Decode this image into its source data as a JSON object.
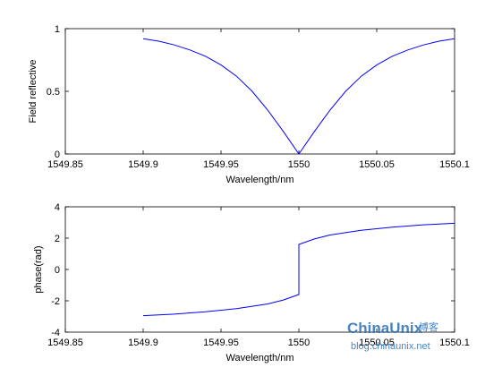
{
  "chart_data": [
    {
      "type": "line",
      "title": "",
      "xlabel": "Wavelength/nm",
      "ylabel": "Field reflective",
      "xlim": [
        1549.85,
        1550.1
      ],
      "ylim": [
        0,
        1
      ],
      "xticks": [
        1549.85,
        1549.9,
        1549.95,
        1550,
        1550.05,
        1550.1
      ],
      "xtick_labels": [
        "1549.85",
        "1549.9",
        "1549.95",
        "1550",
        "1550.05",
        "1550.1"
      ],
      "yticks": [
        0,
        0.5,
        1
      ],
      "ytick_labels": [
        "0",
        "0.5",
        "1"
      ],
      "grid": false,
      "line_color": "#0000ff",
      "series": [
        {
          "x": [
            1549.9,
            1549.91,
            1549.92,
            1549.93,
            1549.94,
            1549.95,
            1549.96,
            1549.97,
            1549.98,
            1549.99,
            1550.0,
            1550.01,
            1550.02,
            1550.03,
            1550.04,
            1550.05,
            1550.06,
            1550.07,
            1550.08,
            1550.09,
            1550.1
          ],
          "y": [
            0.92,
            0.9,
            0.87,
            0.83,
            0.78,
            0.71,
            0.62,
            0.5,
            0.35,
            0.18,
            0.0,
            0.18,
            0.35,
            0.5,
            0.62,
            0.71,
            0.78,
            0.83,
            0.87,
            0.9,
            0.92
          ]
        }
      ]
    },
    {
      "type": "line",
      "title": "",
      "xlabel": "Wavelength/nm",
      "ylabel": "phase(rad)",
      "xlim": [
        1549.85,
        1550.1
      ],
      "ylim": [
        -4,
        4
      ],
      "xticks": [
        1549.85,
        1549.9,
        1549.95,
        1550,
        1550.05,
        1550.1
      ],
      "xtick_labels": [
        "1549.85",
        "1549.9",
        "1549.95",
        "1550",
        "1550.05",
        "1550.1"
      ],
      "yticks": [
        -4,
        -2,
        0,
        2,
        4
      ],
      "ytick_labels": [
        "-4",
        "-2",
        "0",
        "2",
        "4"
      ],
      "grid": false,
      "line_color": "#0000ff",
      "series": [
        {
          "x": [
            1549.9,
            1549.92,
            1549.94,
            1549.96,
            1549.98,
            1549.99,
            1550.0,
            1550.0,
            1550.01,
            1550.02,
            1550.04,
            1550.06,
            1550.08,
            1550.1
          ],
          "y": [
            -2.95,
            -2.85,
            -2.7,
            -2.5,
            -2.2,
            -1.95,
            -1.6,
            1.6,
            1.95,
            2.2,
            2.5,
            2.7,
            2.85,
            2.95
          ]
        }
      ]
    }
  ],
  "watermark": {
    "brand": "ChinaUnix",
    "brand_suffix": "博客",
    "url": "blog.chinaunix.net",
    "brand_color": "#2a6fb5",
    "accent_color": "#e05a1c"
  }
}
